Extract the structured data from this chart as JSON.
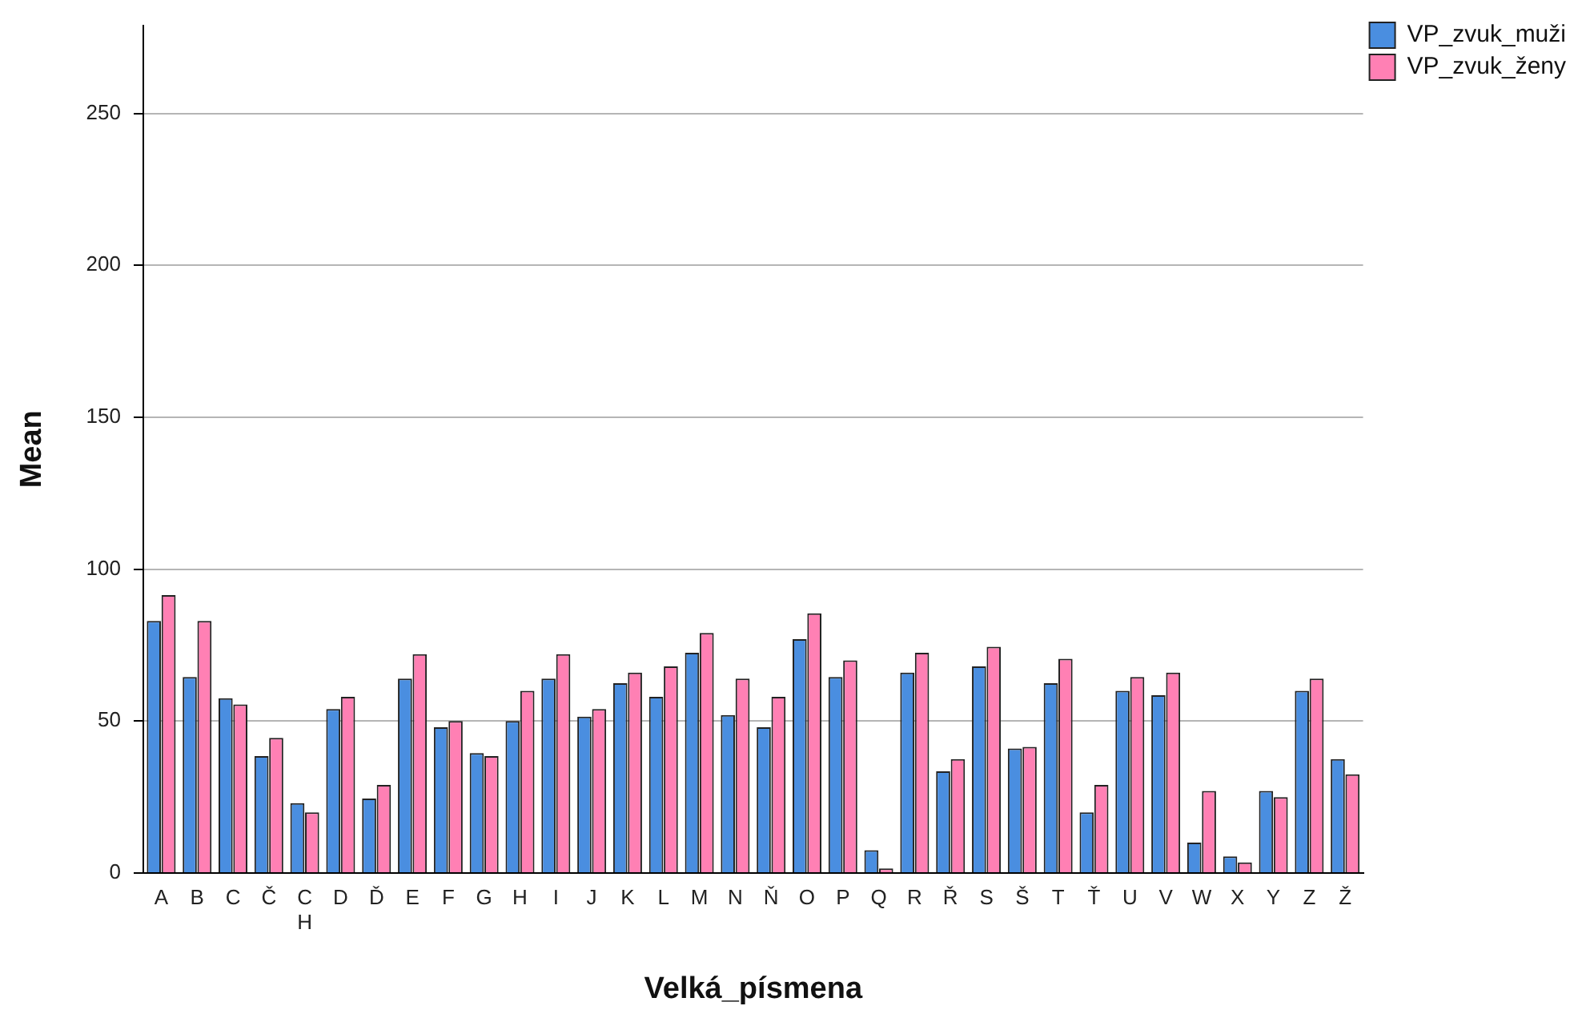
{
  "chart_data": {
    "type": "bar",
    "xlabel": "Velká_písmena",
    "ylabel": "Mean",
    "categories": [
      "A",
      "B",
      "C",
      "Č",
      "CH",
      "D",
      "Ď",
      "E",
      "F",
      "G",
      "H",
      "I",
      "J",
      "K",
      "L",
      "M",
      "N",
      "Ň",
      "O",
      "P",
      "Q",
      "R",
      "Ř",
      "S",
      "Š",
      "T",
      "Ť",
      "U",
      "V",
      "W",
      "X",
      "Y",
      "Z",
      "Ž"
    ],
    "series": [
      {
        "name": "VP_zvuk_muži",
        "color": "#4a8ee0",
        "values": [
          83,
          64.5,
          57.5,
          38.5,
          23,
          54,
          24.5,
          64,
          48,
          39.5,
          50,
          64,
          51.5,
          62.5,
          58,
          72.5,
          52,
          48,
          77,
          64.5,
          7.5,
          66,
          33.5,
          68,
          41,
          62.5,
          20,
          60,
          58.5,
          10,
          5.5,
          27,
          60,
          37.5
        ]
      },
      {
        "name": "VP_zvuk_ženy",
        "color": "#ff80b4",
        "values": [
          91.5,
          83,
          55.5,
          44.5,
          20,
          58,
          29,
          72,
          50,
          38.5,
          60,
          72,
          54,
          66,
          68,
          79,
          64,
          58,
          85.5,
          70,
          1.5,
          72.5,
          37.5,
          74.5,
          41.5,
          70.5,
          29,
          64.5,
          66,
          27,
          3.5,
          25,
          64,
          32.5
        ]
      }
    ],
    "ylim": [
      0,
      279
    ],
    "yticks": [
      0,
      50,
      100,
      150,
      200,
      250
    ],
    "grid": "y",
    "legend": "top right"
  }
}
